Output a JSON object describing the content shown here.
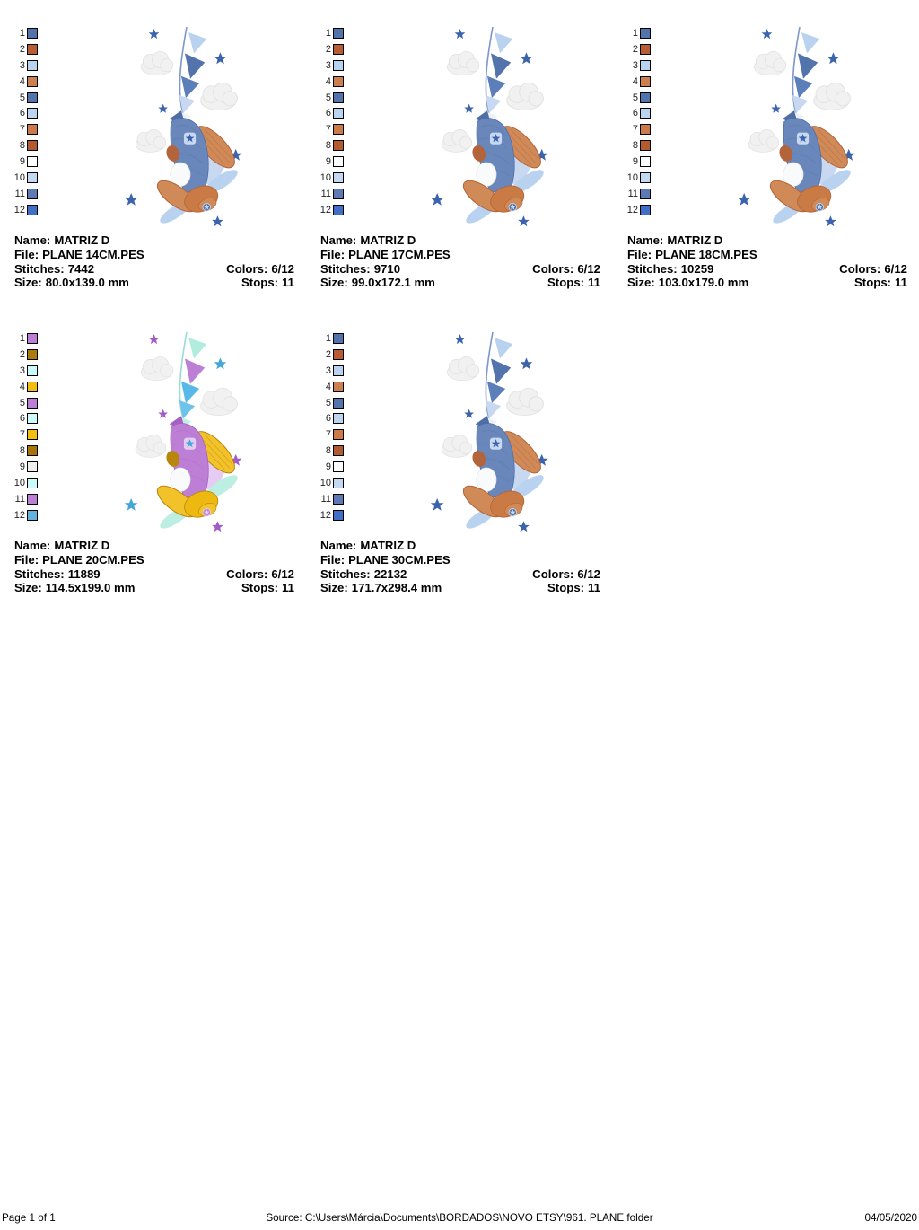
{
  "labels": {
    "name": "Name:",
    "file": "File:",
    "stitches": "Stitches:",
    "colors": "Colors:",
    "size": "Size:",
    "stops": "Stops:"
  },
  "footer": {
    "page": "Page 1 of 1",
    "source": "Source: C:\\Users\\Márcia\\Documents\\BORDADOS\\NOVO ETSY\\961. PLANE folder",
    "date": "04/05/2020"
  },
  "designs": [
    {
      "name": "MATRIZ D",
      "file": "PLANE 14CM.PES",
      "stitches": "7442",
      "colors": "6/12",
      "size": "80.0x139.0 mm",
      "stops": "11",
      "palette": [
        "#5273ab",
        "#b85c33",
        "#b9d2ef",
        "#cd7f4f",
        "#5273ab",
        "#bdd4f0",
        "#cd7a4a",
        "#b25a30",
        "#ffffff",
        "#c5d8f1",
        "#5e79b4",
        "#3f6fc6"
      ],
      "art": {
        "string": "#7d98c9",
        "body": "#6987ba",
        "bodyDark": "#4f6ea6",
        "bodyLight": "#c7d8f0",
        "white": "#f8fafc",
        "wing": "#d08a58",
        "wingDark": "#b3643b",
        "cowl": "#c97a45",
        "hub": "#5273ab",
        "prop": "#b9d2ef",
        "star": "#3c63ad",
        "star2": "#3c63ad",
        "cloud": "#f1f1f1",
        "cloudEdge": "#e2e2e2",
        "flags": [
          "#b9d2ef",
          "#5273ab",
          "#5d7fb9",
          "#c7d8f0",
          "#eef2f8",
          "#5273ab"
        ]
      }
    },
    {
      "name": "MATRIZ D",
      "file": "PLANE 17CM.PES",
      "stitches": "9710",
      "colors": "6/12",
      "size": "99.0x172.1 mm",
      "stops": "11",
      "palette": [
        "#5273ab",
        "#b85c33",
        "#b9d2ef",
        "#cd7f4f",
        "#5273ab",
        "#bdd4f0",
        "#cd7a4a",
        "#b25a30",
        "#ffffff",
        "#c5d8f1",
        "#5e79b4",
        "#3f6fc6"
      ],
      "art": {
        "string": "#7d98c9",
        "body": "#6987ba",
        "bodyDark": "#4f6ea6",
        "bodyLight": "#c7d8f0",
        "white": "#f8fafc",
        "wing": "#d08a58",
        "wingDark": "#b3643b",
        "cowl": "#c97a45",
        "hub": "#5273ab",
        "prop": "#b9d2ef",
        "star": "#3c63ad",
        "star2": "#3c63ad",
        "cloud": "#f1f1f1",
        "cloudEdge": "#e2e2e2",
        "flags": [
          "#b9d2ef",
          "#5273ab",
          "#5d7fb9",
          "#c7d8f0",
          "#eef2f8",
          "#5273ab"
        ]
      }
    },
    {
      "name": "MATRIZ D",
      "file": "PLANE 18CM.PES",
      "stitches": "10259",
      "colors": "6/12",
      "size": "103.0x179.0 mm",
      "stops": "11",
      "palette": [
        "#5273ab",
        "#b85c33",
        "#b9d2ef",
        "#cd7f4f",
        "#5273ab",
        "#bdd4f0",
        "#cd7a4a",
        "#b25a30",
        "#ffffff",
        "#c5d8f1",
        "#5e79b4",
        "#3f6fc6"
      ],
      "art": {
        "string": "#7d98c9",
        "body": "#6987ba",
        "bodyDark": "#4f6ea6",
        "bodyLight": "#c7d8f0",
        "white": "#f8fafc",
        "wing": "#d08a58",
        "wingDark": "#b3643b",
        "cowl": "#c97a45",
        "hub": "#5273ab",
        "prop": "#b9d2ef",
        "star": "#3c63ad",
        "star2": "#3c63ad",
        "cloud": "#f1f1f1",
        "cloudEdge": "#e2e2e2",
        "flags": [
          "#b9d2ef",
          "#5273ab",
          "#5d7fb9",
          "#c7d8f0",
          "#eef2f8",
          "#5273ab"
        ]
      }
    },
    {
      "name": "MATRIZ D",
      "file": "PLANE 20CM.PES",
      "stitches": "11889",
      "colors": "6/12",
      "size": "114.5x199.0 mm",
      "stops": "11",
      "palette": [
        "#bd7fd6",
        "#ab7b0b",
        "#c9fbf9",
        "#f2bc13",
        "#bd7fd6",
        "#ccfcfa",
        "#f4be10",
        "#a87408",
        "#efefef",
        "#c9fbfb",
        "#bd7fd6",
        "#5fb3dc"
      ],
      "art": {
        "string": "#9adcd4",
        "body": "#bd7fd6",
        "bodyDark": "#a561c4",
        "bodyLight": "#e6ccf2",
        "white": "#f8fafc",
        "wing": "#f2c22a",
        "wingDark": "#b8860b",
        "cowl": "#edb80f",
        "hub": "#bd7fd6",
        "prop": "#bdeee2",
        "star": "#45a7d8",
        "star2": "#a05cc9",
        "cloud": "#f1f1f1",
        "cloudEdge": "#e4e4e4",
        "flags": [
          "#b2ecdf",
          "#bd7fd6",
          "#58b9e8",
          "#6fc3ea",
          "#c0f0e6",
          "#bd7fd6"
        ]
      }
    },
    {
      "name": "MATRIZ D",
      "file": "PLANE 30CM.PES",
      "stitches": "22132",
      "colors": "6/12",
      "size": "171.7x298.4 mm",
      "stops": "11",
      "palette": [
        "#5273ab",
        "#b85c33",
        "#b9d2ef",
        "#cd7f4f",
        "#5273ab",
        "#bdd4f0",
        "#cd7a4a",
        "#b25a30",
        "#ffffff",
        "#c5d8f1",
        "#5e79b4",
        "#3f6fc6"
      ],
      "art": {
        "string": "#7d98c9",
        "body": "#6987ba",
        "bodyDark": "#4f6ea6",
        "bodyLight": "#c7d8f0",
        "white": "#f8fafc",
        "wing": "#d08a58",
        "wingDark": "#b3643b",
        "cowl": "#c97a45",
        "hub": "#5273ab",
        "prop": "#b9d2ef",
        "star": "#3c63ad",
        "star2": "#3c63ad",
        "cloud": "#f1f1f1",
        "cloudEdge": "#e2e2e2",
        "flags": [
          "#b9d2ef",
          "#5273ab",
          "#5d7fb9",
          "#c7d8f0",
          "#eef2f8",
          "#5273ab"
        ]
      }
    }
  ]
}
